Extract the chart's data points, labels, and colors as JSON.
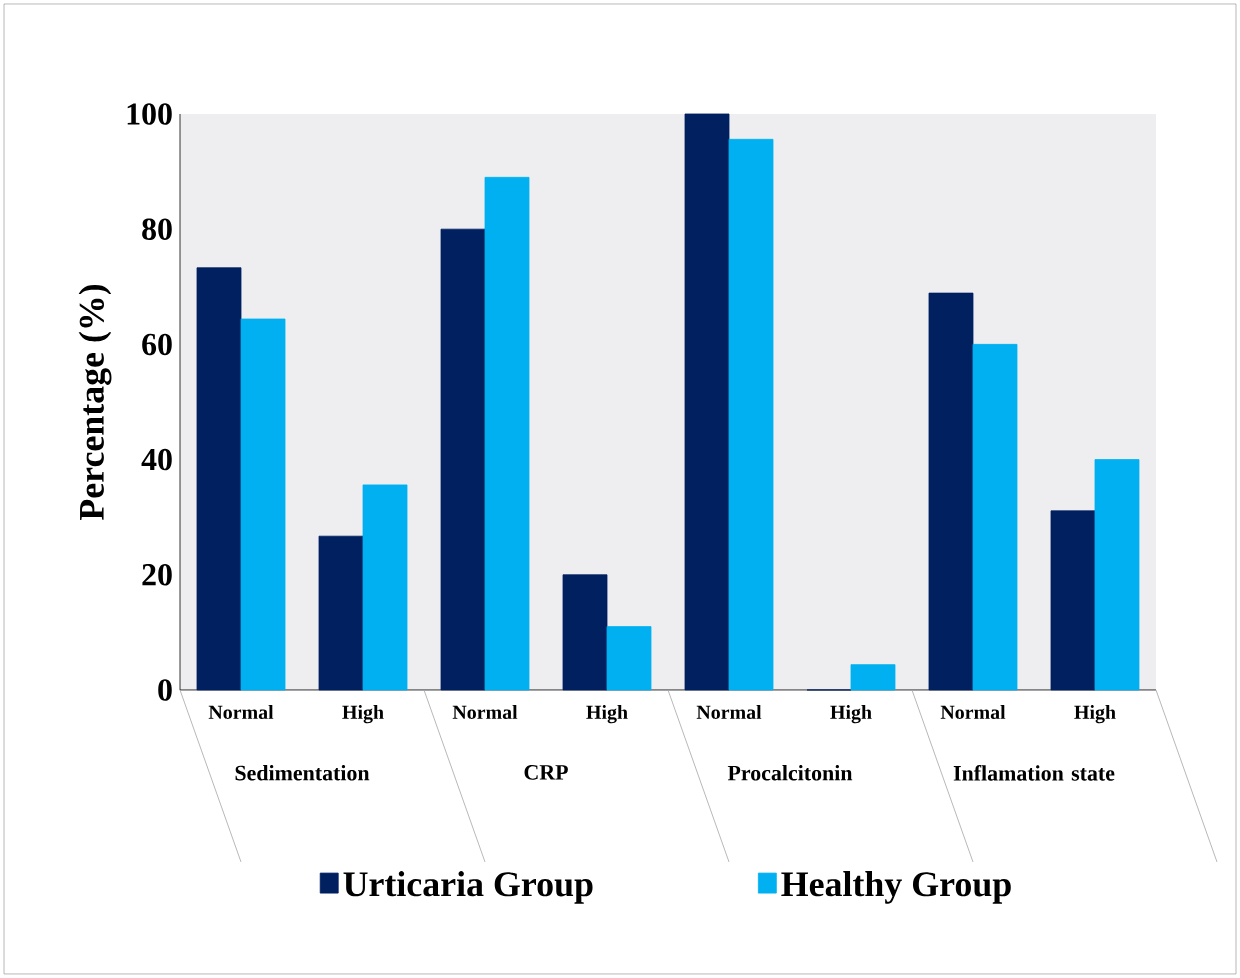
{
  "chart_data": {
    "type": "bar",
    "ylabel": "Percentage (%)",
    "categories": [
      "Normal",
      "High",
      "Normal",
      "High",
      "Normal",
      "High",
      "Normal",
      "High"
    ],
    "annotations": [
      "Sedimentation",
      "CRP",
      "Procalcitonin",
      "Inflamation state"
    ],
    "series": [
      {
        "name": "Urticaria Group",
        "color": "#002060",
        "values": [
          73.3,
          26.7,
          80,
          20,
          100,
          0,
          68.9,
          31.1
        ]
      },
      {
        "name": "Healthy Group",
        "color": "#00b0f0",
        "values": [
          64.4,
          35.6,
          89,
          11,
          95.6,
          4.4,
          60,
          40
        ]
      }
    ],
    "ylim": [
      0,
      100
    ],
    "yticks": [
      0,
      20,
      40,
      60,
      80,
      100
    ],
    "grid": false,
    "legend": "bottom"
  }
}
